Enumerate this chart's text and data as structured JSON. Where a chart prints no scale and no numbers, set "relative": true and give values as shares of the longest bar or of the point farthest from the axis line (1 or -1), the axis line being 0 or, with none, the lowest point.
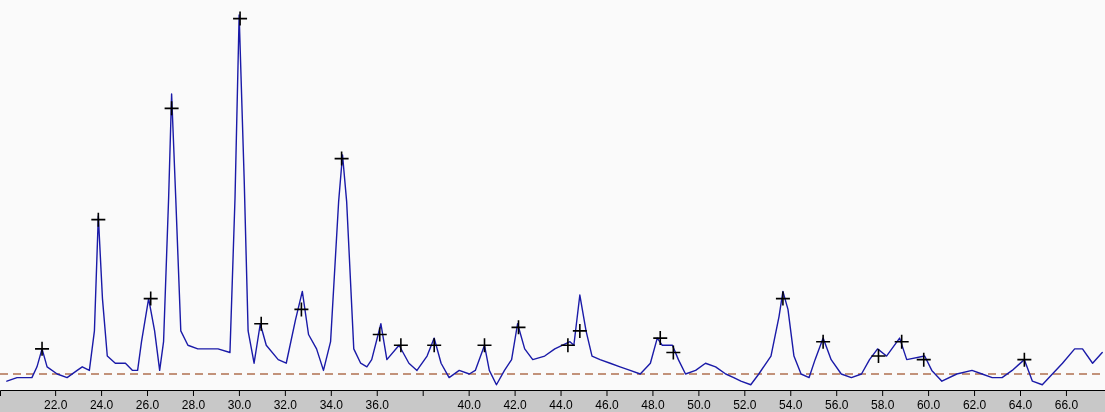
{
  "chart_data": {
    "type": "line",
    "relative": true,
    "xlim": [
      19.6,
      67.7
    ],
    "xticks": [
      {
        "value": 22,
        "label": "22.0"
      },
      {
        "value": 24,
        "label": "24.0"
      },
      {
        "value": 26,
        "label": "26.0"
      },
      {
        "value": 28,
        "label": "28.0"
      },
      {
        "value": 30,
        "label": "30.0"
      },
      {
        "value": 32,
        "label": "32.0"
      },
      {
        "value": 34,
        "label": "34.0"
      },
      {
        "value": 36,
        "label": "36.0"
      },
      {
        "value": 38,
        "label": null
      },
      {
        "value": 40,
        "label": "40.0"
      },
      {
        "value": 42,
        "label": "42.0"
      },
      {
        "value": 44,
        "label": "44.0"
      },
      {
        "value": 46,
        "label": "46.0"
      },
      {
        "value": 48,
        "label": "48.0"
      },
      {
        "value": 50,
        "label": "50.0"
      },
      {
        "value": 52,
        "label": "52.0"
      },
      {
        "value": 54,
        "label": "54.0"
      },
      {
        "value": 56,
        "label": "56.0"
      },
      {
        "value": 58,
        "label": "58.0"
      },
      {
        "value": 60,
        "label": "60.0"
      },
      {
        "value": 62,
        "label": "62.0"
      },
      {
        "value": 64,
        "label": "64.0"
      },
      {
        "value": 66,
        "label": "66.0"
      }
    ],
    "ref_lines": [
      {
        "axis": "y",
        "value": 0,
        "color": "#b07050",
        "line_style": "dashed"
      }
    ],
    "series": [
      {
        "color": "#1a1aa8",
        "marker": "none",
        "x": [
          19.9,
          20.34,
          20.99,
          21.21,
          21.43,
          21.65,
          22.09,
          22.52,
          22.96,
          23.18,
          23.49,
          23.71,
          23.88,
          24.06,
          24.27,
          24.62,
          25.06,
          25.37,
          25.59,
          25.76,
          26.07,
          26.33,
          26.55,
          26.72,
          26.94,
          27.07,
          27.25,
          27.47,
          27.78,
          28.21,
          28.65,
          29.09,
          29.61,
          29.83,
          30.01,
          30.23,
          30.4,
          30.66,
          30.93,
          31.19,
          31.71,
          32.06,
          32.46,
          32.76,
          33.03,
          33.38,
          33.68,
          33.99,
          34.34,
          34.51,
          34.69,
          35.0,
          35.3,
          35.57,
          35.78,
          36.18,
          36.44,
          36.97,
          37.4,
          37.75,
          38.19,
          38.5,
          38.8,
          39.15,
          39.59,
          40.03,
          40.29,
          40.69,
          40.9,
          41.21,
          41.56,
          41.87,
          42.13,
          42.44,
          42.79,
          43.31,
          43.75,
          44.41,
          44.58,
          44.84,
          45.11,
          45.37,
          45.72,
          46.16,
          46.59,
          47.03,
          47.47,
          47.91,
          48.21,
          48.43,
          48.87,
          49.13,
          49.44,
          49.88,
          50.31,
          50.75,
          51.19,
          51.54,
          51.85,
          52.28,
          52.63,
          53.16,
          53.51,
          53.68,
          53.9,
          54.16,
          54.47,
          54.82,
          55.08,
          55.43,
          55.78,
          56.22,
          56.66,
          57.1,
          57.45,
          57.8,
          58.19,
          58.76,
          59.07,
          59.85,
          60.16,
          60.6,
          61.25,
          61.91,
          62.35,
          62.79,
          63.22,
          63.66,
          64.19,
          64.54,
          64.97,
          65.41,
          65.85,
          66.38,
          66.72,
          67.16,
          67.58
        ],
        "values": [
          -0.02,
          -0.01,
          -0.01,
          0.02,
          0.07,
          0.02,
          0.0,
          -0.01,
          0.01,
          0.02,
          0.01,
          0.12,
          0.44,
          0.21,
          0.05,
          0.03,
          0.03,
          0.01,
          0.01,
          0.09,
          0.21,
          0.12,
          0.01,
          0.09,
          0.49,
          0.78,
          0.49,
          0.12,
          0.08,
          0.07,
          0.07,
          0.07,
          0.06,
          0.49,
          1.0,
          0.54,
          0.12,
          0.03,
          0.14,
          0.08,
          0.04,
          0.03,
          0.15,
          0.23,
          0.11,
          0.07,
          0.01,
          0.09,
          0.48,
          0.61,
          0.48,
          0.07,
          0.03,
          0.02,
          0.04,
          0.14,
          0.04,
          0.08,
          0.03,
          0.01,
          0.05,
          0.1,
          0.03,
          -0.01,
          0.01,
          0.0,
          0.01,
          0.08,
          0.01,
          -0.03,
          0.01,
          0.04,
          0.14,
          0.07,
          0.04,
          0.05,
          0.07,
          0.09,
          0.08,
          0.22,
          0.12,
          0.05,
          0.04,
          0.03,
          0.02,
          0.01,
          0.0,
          0.03,
          0.1,
          0.08,
          0.08,
          0.04,
          0.0,
          0.01,
          0.03,
          0.02,
          0.0,
          -0.01,
          -0.02,
          -0.03,
          0.0,
          0.05,
          0.16,
          0.23,
          0.18,
          0.05,
          0.0,
          -0.01,
          0.04,
          0.1,
          0.04,
          0.0,
          -0.01,
          0.0,
          0.04,
          0.07,
          0.05,
          0.1,
          0.04,
          0.05,
          0.01,
          -0.02,
          0.0,
          0.01,
          0.0,
          -0.01,
          -0.01,
          0.01,
          0.04,
          -0.02,
          -0.03,
          0.0,
          0.03,
          0.07,
          0.07,
          0.03,
          0.06
        ]
      },
      {
        "type": "scatter",
        "color": "#000000",
        "marker": "cross",
        "x": [
          21.43,
          23.88,
          26.16,
          27.07,
          30.05,
          30.97,
          32.72,
          34.47,
          36.13,
          37.05,
          38.5,
          40.69,
          42.17,
          44.32,
          44.84,
          48.34,
          48.91,
          53.68,
          55.43,
          57.84,
          58.85,
          59.81,
          64.19
        ],
        "values": [
          0.07,
          0.43,
          0.21,
          0.74,
          0.99,
          0.14,
          0.18,
          0.6,
          0.11,
          0.08,
          0.08,
          0.08,
          0.13,
          0.08,
          0.12,
          0.1,
          0.06,
          0.21,
          0.09,
          0.05,
          0.09,
          0.04,
          0.04
        ]
      }
    ]
  }
}
